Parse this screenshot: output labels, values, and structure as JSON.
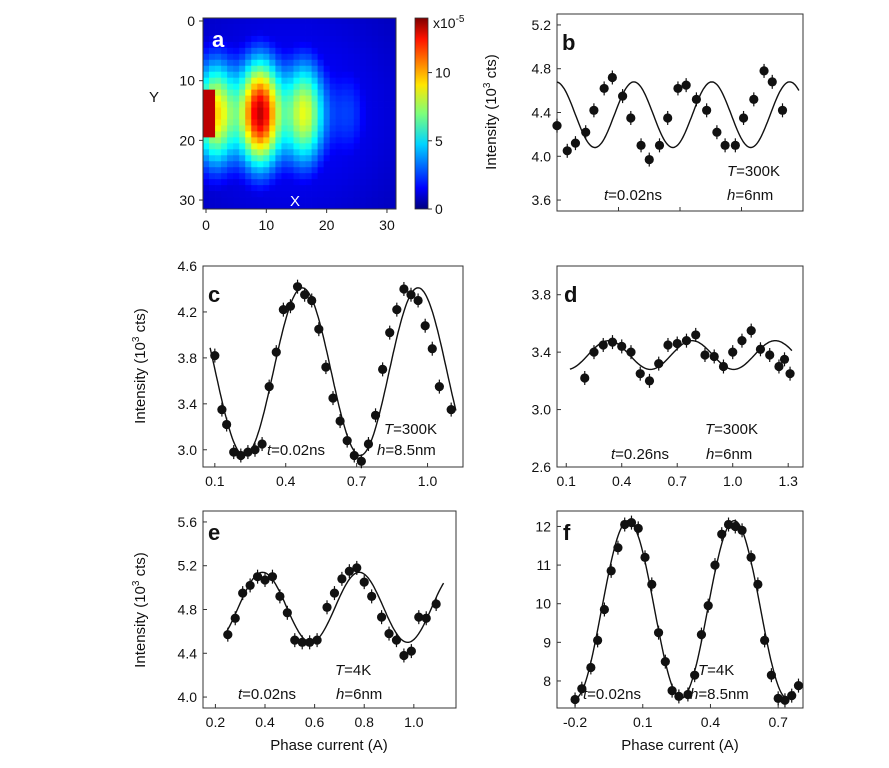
{
  "chart_data": [
    {
      "panel": "a",
      "type": "heatmap",
      "xlabel": "X",
      "ylabel": "Y",
      "x_ticks": [
        "0",
        "10",
        "20",
        "30"
      ],
      "y_ticks": [
        "0",
        "10",
        "20",
        "30"
      ],
      "xlim": [
        0,
        32
      ],
      "ylim": [
        0,
        32
      ],
      "colorbar": {
        "multiplier": "x10",
        "multiplier_exp": "-5",
        "ticks": [
          "10",
          "5",
          "0"
        ],
        "range": [
          0,
          14
        ]
      },
      "description_values": {
        "peak_x": 10,
        "peak_y": 16,
        "peak_value": 14
      }
    },
    {
      "panel": "b",
      "type": "scatter",
      "ylabel_main": "Intensity (10",
      "ylabel_sup": "3",
      "ylabel_tail": " cts)",
      "ylim": [
        3.5,
        5.3
      ],
      "y_ticks": [
        "3.6",
        "4.0",
        "4.4",
        "4.8",
        "5.2"
      ],
      "xlim": [
        0.0,
        1.2
      ],
      "annotations": {
        "T": "T",
        "T_val": "=300K",
        "t": "t",
        "t_val": "=0.02ns",
        "h": "h",
        "h_val": "=6nm"
      },
      "fit": {
        "mean": 4.38,
        "amp": 0.3,
        "period": 0.38,
        "x_peak": 0.375,
        "range": [
          0.0,
          1.18
        ]
      },
      "points": [
        [
          0.0,
          4.28
        ],
        [
          0.05,
          4.05
        ],
        [
          0.09,
          4.12
        ],
        [
          0.14,
          4.22
        ],
        [
          0.18,
          4.42
        ],
        [
          0.23,
          4.62
        ],
        [
          0.27,
          4.72
        ],
        [
          0.32,
          4.55
        ],
        [
          0.36,
          4.35
        ],
        [
          0.41,
          4.1
        ],
        [
          0.45,
          3.97
        ],
        [
          0.5,
          4.1
        ],
        [
          0.54,
          4.35
        ],
        [
          0.59,
          4.62
        ],
        [
          0.63,
          4.65
        ],
        [
          0.68,
          4.52
        ],
        [
          0.73,
          4.42
        ],
        [
          0.78,
          4.22
        ],
        [
          0.82,
          4.1
        ],
        [
          0.87,
          4.1
        ],
        [
          0.91,
          4.35
        ],
        [
          0.96,
          4.52
        ],
        [
          1.01,
          4.78
        ],
        [
          1.05,
          4.68
        ],
        [
          1.1,
          4.42
        ]
      ]
    },
    {
      "panel": "c",
      "type": "scatter",
      "ylabel_main": "Intensity (10",
      "ylabel_sup": "3",
      "ylabel_tail": " cts)",
      "ylim": [
        2.85,
        4.6
      ],
      "y_ticks": [
        "3.0",
        "3.4",
        "3.8",
        "4.2",
        "4.6"
      ],
      "xlim": [
        0.05,
        1.15
      ],
      "x_ticks": [
        "0.1",
        "0.4",
        "0.7",
        "1.0"
      ],
      "annotations": {
        "T": "T",
        "T_val": "=300K",
        "t": "t",
        "t_val": "=0.02ns",
        "h": "h",
        "h_val": "=8.5nm"
      },
      "fit": {
        "mean": 3.68,
        "amp": 0.73,
        "period": 0.49,
        "x_peak": 0.47,
        "range": [
          0.08,
          1.12
        ]
      },
      "points": [
        [
          0.1,
          3.82
        ],
        [
          0.13,
          3.35
        ],
        [
          0.15,
          3.22
        ],
        [
          0.18,
          2.98
        ],
        [
          0.21,
          2.95
        ],
        [
          0.24,
          2.98
        ],
        [
          0.27,
          3.0
        ],
        [
          0.3,
          3.05
        ],
        [
          0.33,
          3.55
        ],
        [
          0.36,
          3.85
        ],
        [
          0.39,
          4.22
        ],
        [
          0.42,
          4.25
        ],
        [
          0.45,
          4.42
        ],
        [
          0.48,
          4.35
        ],
        [
          0.51,
          4.3
        ],
        [
          0.54,
          4.05
        ],
        [
          0.57,
          3.72
        ],
        [
          0.6,
          3.45
        ],
        [
          0.63,
          3.25
        ],
        [
          0.66,
          3.08
        ],
        [
          0.69,
          2.95
        ],
        [
          0.72,
          2.9
        ],
        [
          0.75,
          3.05
        ],
        [
          0.78,
          3.3
        ],
        [
          0.81,
          3.7
        ],
        [
          0.84,
          4.02
        ],
        [
          0.87,
          4.22
        ],
        [
          0.9,
          4.4
        ],
        [
          0.93,
          4.35
        ],
        [
          0.96,
          4.3
        ],
        [
          0.99,
          4.08
        ],
        [
          1.02,
          3.88
        ],
        [
          1.05,
          3.55
        ],
        [
          1.1,
          3.35
        ]
      ]
    },
    {
      "panel": "d",
      "type": "scatter",
      "ylim": [
        2.6,
        4.0
      ],
      "y_ticks": [
        "2.6",
        "3.0",
        "3.4",
        "3.8"
      ],
      "xlim": [
        0.05,
        1.38
      ],
      "x_ticks": [
        "0.1",
        "0.4",
        "0.7",
        "1.0",
        "1.3"
      ],
      "annotations": {
        "T": "T",
        "T_val": "=300K",
        "t": "t",
        "t_val": "=0.26ns",
        "h": "h",
        "h_val": "=6nm"
      },
      "fit": {
        "mean": 3.38,
        "amp": 0.1,
        "period": 0.45,
        "x_peak": 0.33,
        "range": [
          0.12,
          1.32
        ]
      },
      "points": [
        [
          0.2,
          3.22
        ],
        [
          0.25,
          3.4
        ],
        [
          0.3,
          3.45
        ],
        [
          0.35,
          3.47
        ],
        [
          0.4,
          3.44
        ],
        [
          0.45,
          3.4
        ],
        [
          0.5,
          3.25
        ],
        [
          0.55,
          3.2
        ],
        [
          0.6,
          3.32
        ],
        [
          0.65,
          3.45
        ],
        [
          0.7,
          3.46
        ],
        [
          0.75,
          3.48
        ],
        [
          0.8,
          3.52
        ],
        [
          0.85,
          3.38
        ],
        [
          0.9,
          3.37
        ],
        [
          0.95,
          3.3
        ],
        [
          1.0,
          3.4
        ],
        [
          1.05,
          3.48
        ],
        [
          1.1,
          3.55
        ],
        [
          1.15,
          3.42
        ],
        [
          1.2,
          3.38
        ],
        [
          1.25,
          3.3
        ],
        [
          1.28,
          3.35
        ],
        [
          1.31,
          3.25
        ]
      ]
    },
    {
      "panel": "e",
      "type": "scatter",
      "ylabel_main": "Intensity (10",
      "ylabel_sup": "3",
      "ylabel_tail": " cts)",
      "xlabel": "Phase current (A)",
      "ylim": [
        3.9,
        5.7
      ],
      "y_ticks": [
        "4.0",
        "4.4",
        "4.8",
        "5.2",
        "5.6"
      ],
      "xlim": [
        0.15,
        1.17
      ],
      "x_ticks": [
        "0.2",
        "0.4",
        "0.6",
        "0.8",
        "1.0"
      ],
      "annotations": {
        "T": "T",
        "T_val": "=4K",
        "t": "t",
        "t_val": "=0.02ns",
        "h": "h",
        "h_val": "=6nm"
      },
      "fit": {
        "mean": 4.82,
        "amp": 0.32,
        "period": 0.39,
        "x_peak": 0.39,
        "range": [
          0.24,
          1.12
        ]
      },
      "points": [
        [
          0.25,
          4.57
        ],
        [
          0.28,
          4.72
        ],
        [
          0.31,
          4.95
        ],
        [
          0.34,
          5.02
        ],
        [
          0.37,
          5.1
        ],
        [
          0.4,
          5.07
        ],
        [
          0.43,
          5.1
        ],
        [
          0.46,
          4.92
        ],
        [
          0.49,
          4.77
        ],
        [
          0.52,
          4.52
        ],
        [
          0.55,
          4.5
        ],
        [
          0.58,
          4.5
        ],
        [
          0.61,
          4.52
        ],
        [
          0.65,
          4.82
        ],
        [
          0.68,
          4.95
        ],
        [
          0.71,
          5.08
        ],
        [
          0.74,
          5.15
        ],
        [
          0.77,
          5.18
        ],
        [
          0.8,
          5.05
        ],
        [
          0.83,
          4.92
        ],
        [
          0.87,
          4.73
        ],
        [
          0.9,
          4.58
        ],
        [
          0.93,
          4.52
        ],
        [
          0.96,
          4.38
        ],
        [
          0.99,
          4.42
        ],
        [
          1.02,
          4.73
        ],
        [
          1.05,
          4.72
        ],
        [
          1.09,
          4.85
        ]
      ]
    },
    {
      "panel": "f",
      "type": "scatter",
      "xlabel": "Phase current (A)",
      "ylim": [
        7.3,
        12.4
      ],
      "y_ticks": [
        "8",
        "9",
        "10",
        "11",
        "12"
      ],
      "xlim": [
        -0.28,
        0.81
      ],
      "x_ticks": [
        "-0.2",
        "0.1",
        "0.4",
        "0.7"
      ],
      "annotations": {
        "T": "T",
        "T_val": "=4K",
        "t": "t",
        "t_val": "=0.02ns",
        "h": "h",
        "h_val": "=8.5nm"
      },
      "fit": {
        "mean": 9.85,
        "amp": 2.3,
        "period": 0.47,
        "x_peak": 0.035,
        "range": [
          -0.21,
          0.77
        ]
      },
      "points": [
        [
          -0.2,
          7.52
        ],
        [
          -0.17,
          7.8
        ],
        [
          -0.13,
          8.35
        ],
        [
          -0.1,
          9.05
        ],
        [
          -0.07,
          9.85
        ],
        [
          -0.04,
          10.85
        ],
        [
          -0.01,
          11.45
        ],
        [
          0.02,
          12.05
        ],
        [
          0.05,
          12.1
        ],
        [
          0.08,
          11.95
        ],
        [
          0.11,
          11.2
        ],
        [
          0.14,
          10.5
        ],
        [
          0.17,
          9.25
        ],
        [
          0.2,
          8.5
        ],
        [
          0.23,
          7.75
        ],
        [
          0.26,
          7.6
        ],
        [
          0.3,
          7.65
        ],
        [
          0.33,
          8.15
        ],
        [
          0.36,
          9.2
        ],
        [
          0.39,
          9.95
        ],
        [
          0.42,
          11.0
        ],
        [
          0.45,
          11.8
        ],
        [
          0.48,
          12.05
        ],
        [
          0.51,
          12.0
        ],
        [
          0.54,
          11.9
        ],
        [
          0.58,
          11.2
        ],
        [
          0.61,
          10.5
        ],
        [
          0.64,
          9.05
        ],
        [
          0.67,
          8.15
        ],
        [
          0.7,
          7.55
        ],
        [
          0.73,
          7.5
        ],
        [
          0.76,
          7.62
        ],
        [
          0.79,
          7.88
        ]
      ]
    }
  ]
}
